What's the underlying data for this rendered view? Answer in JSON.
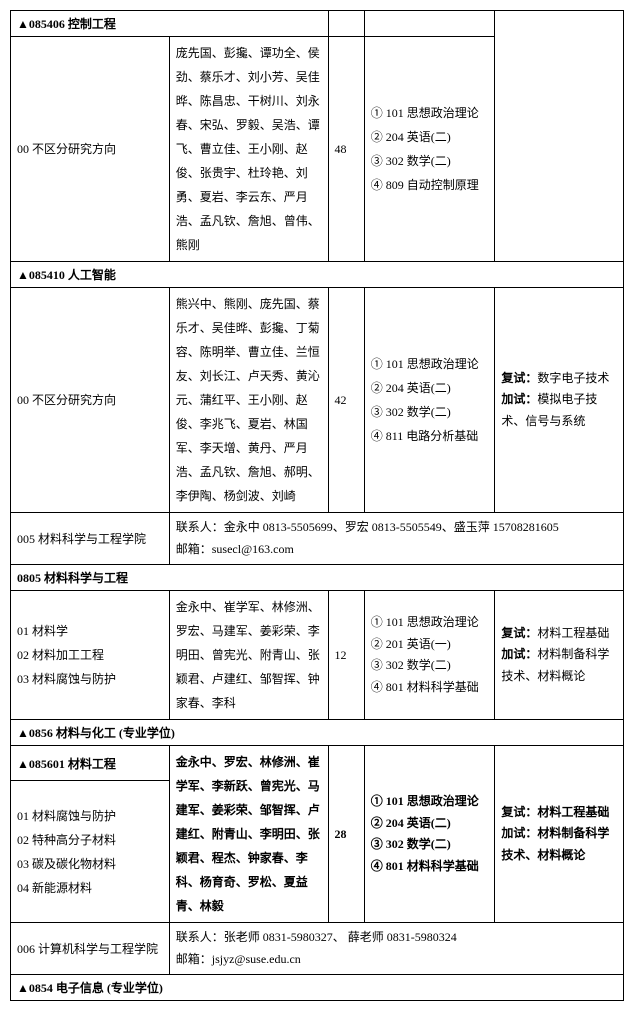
{
  "sec085406": {
    "header": "▲085406 控制工程"
  },
  "row1": {
    "direction": "00 不区分研究方向",
    "advisors": "庞先国、彭攙、谭功全、侯劲、蔡乐才、刘小芳、吴佳晔、陈昌忠、干树川、刘永春、宋弘、罗毅、吴浩、谭飞、曹立佳、王小刚、赵俊、张贵宇、杜玲艳、刘勇、夏岩、李云东、严月浩、孟凡钦、詹旭、曾伟、熊刚",
    "count": "48",
    "exams": "① 101 思想政治理论\n② 204 英语(二)\n③ 302 数学(二)\n④ 809 自动控制原理",
    "notes": ""
  },
  "sec085410": {
    "header": "▲085410 人工智能"
  },
  "row2": {
    "direction": "00 不区分研究方向",
    "advisors": "熊兴中、熊刚、庞先国、蔡乐才、吴佳晔、彭攙、丁菊容、陈明举、曹立佳、兰恒友、刘长江、卢天秀、黄沁元、蒲红平、王小刚、赵俊、李兆飞、夏岩、林国军、李天增、黄丹、严月浩、孟凡钦、詹旭、郝明、李伊陶、杨剑波、刘崎",
    "count": "42",
    "exams": "① 101 思想政治理论\n② 204 英语(二)\n③ 302 数学(二)\n④ 811 电路分析基础",
    "notes_l1": "复试：",
    "notes_v1": "数字电子技术",
    "notes_l2": "加试：",
    "notes_v2": "模拟电子技术、信号与系统"
  },
  "dept005": {
    "title": "005 材料科学与工程学院",
    "contact": "联系人：金永中 0813-5505699、罗宏 0813-5505549、盛玉萍 15708281605\n邮箱：susecl@163.com"
  },
  "sec0805": {
    "header": "0805 材料科学与工程"
  },
  "row3": {
    "direction": "01 材料学\n02 材料加工工程\n03 材料腐蚀与防护",
    "advisors": "金永中、崔学军、林修洲、罗宏、马建军、姜彩荣、李明田、曾宪光、附青山、张颖君、卢建红、邹智挥、钟家春、李科",
    "count": "12",
    "exams": "① 101 思想政治理论\n② 201 英语(一)\n③ 302 数学(二)\n④ 801 材料科学基础",
    "notes_l1": "复试：",
    "notes_v1": "材料工程基础",
    "notes_l2": "加试：",
    "notes_v2": "材料制备科学技术、材料概论"
  },
  "sec0856": {
    "header": "▲0856 材料与化工 (专业学位)"
  },
  "sec085601": {
    "header": "▲085601 材料工程"
  },
  "row4": {
    "direction": "01 材料腐蚀与防护\n02 特种高分子材料\n03 碳及碳化物材料\n04 新能源材料",
    "advisors": "金永中、罗宏、林修洲、崔学军、李新跃、曾宪光、马建军、姜彩荣、邹智挥、卢建红、附青山、李明田、张颖君、程杰、钟家春、李科、杨育奇、罗松、夏益青、林毅",
    "count": "28",
    "exams": "① 101 思想政治理论\n② 204 英语(二)\n③ 302 数学(二)\n④ 801 材料科学基础",
    "notes_l1": "复试：",
    "notes_v1": "材料工程基础",
    "notes_l2": "加试：",
    "notes_v2": "材料制备科学技术、材料概论"
  },
  "dept006": {
    "title": "006 计算机科学与工程学院",
    "contact": "联系人：张老师 0831-5980327、 薛老师 0831-5980324\n邮箱：jsjyz@suse.edu.cn"
  },
  "sec0854": {
    "header": "▲0854 电子信息 (专业学位)"
  }
}
